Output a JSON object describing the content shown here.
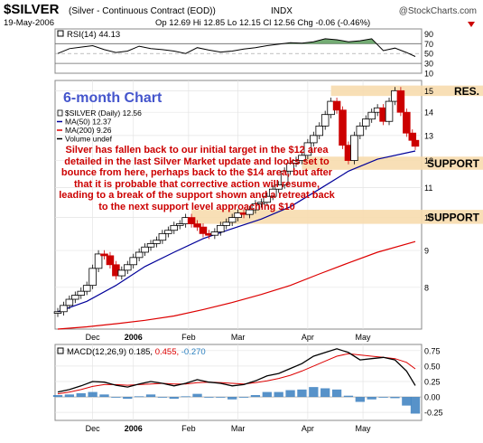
{
  "header": {
    "symbol": "$SILVER",
    "description": "(Silver - Continuous Contract (EOD))",
    "exchange": "INDX",
    "watermark": "@StockCharts.com",
    "date": "19-May-2006",
    "ohlc_text": "Op 12.69  Hi 12.85  Lo 12.15  Cl 12.56  Chg -0.06 (-0.46%)"
  },
  "chart_data": [
    {
      "type": "line",
      "panel": "rsi",
      "legend": "RSI(14) 44.13",
      "ylim": [
        10,
        100
      ],
      "ticks": [
        90,
        70,
        50,
        30,
        10
      ],
      "reference_lines": [
        70,
        30
      ],
      "fill_above": 70,
      "x": [
        0,
        4,
        8,
        12,
        16,
        20,
        24,
        28,
        32,
        36,
        40,
        44,
        48,
        52,
        56,
        60,
        64,
        68,
        72,
        76,
        80,
        84,
        88,
        92,
        96,
        100,
        104,
        108,
        112,
        116,
        120,
        123
      ],
      "values": [
        50,
        60,
        63,
        66,
        58,
        52,
        55,
        65,
        60,
        58,
        55,
        50,
        62,
        57,
        53,
        55,
        59,
        62,
        66,
        69,
        72,
        71,
        74,
        80,
        78,
        74,
        76,
        80,
        56,
        61,
        52,
        44
      ]
    },
    {
      "type": "candlestick",
      "panel": "price",
      "title": "6-month Chart",
      "legend": [
        "$SILVER (Daily) 12.56",
        "MA(50) 12.37",
        "MA(200) 9.26",
        "Volume undef"
      ],
      "ylim": [
        7,
        15.5
      ],
      "y_ticks": [
        15,
        14,
        13,
        12,
        11,
        10,
        9,
        8
      ],
      "log_scale": true,
      "x_labels": [
        "Dec",
        "2006",
        "Feb",
        "Mar",
        "Apr",
        "May"
      ],
      "x_label_positions": [
        12,
        26,
        45,
        62,
        86,
        105
      ],
      "close_x": [
        0,
        2,
        4,
        6,
        8,
        10,
        12,
        14,
        16,
        18,
        20,
        22,
        24,
        26,
        28,
        30,
        32,
        34,
        36,
        38,
        40,
        42,
        44,
        46,
        48,
        50,
        52,
        54,
        56,
        58,
        60,
        62,
        64,
        66,
        68,
        70,
        72,
        74,
        76,
        78,
        80,
        82,
        84,
        86,
        88,
        90,
        92,
        94,
        96,
        98,
        100,
        102,
        104,
        106,
        108,
        110,
        112,
        114,
        116,
        118,
        120,
        122,
        123
      ],
      "close": [
        7.4,
        7.55,
        7.7,
        7.8,
        7.9,
        8.05,
        8.5,
        8.9,
        8.85,
        8.6,
        8.3,
        8.45,
        8.6,
        8.8,
        8.95,
        9.1,
        9.2,
        9.3,
        9.5,
        9.6,
        9.75,
        9.8,
        10.0,
        9.8,
        9.7,
        9.5,
        9.45,
        9.55,
        9.75,
        9.85,
        10.0,
        10.15,
        10.1,
        10.25,
        10.45,
        10.5,
        10.7,
        10.95,
        11.1,
        11.6,
        11.9,
        12.0,
        12.2,
        12.7,
        13.0,
        13.4,
        13.9,
        14.5,
        14.1,
        12.6,
        12.0,
        13.0,
        13.4,
        13.7,
        14.0,
        14.2,
        13.6,
        14.5,
        15.0,
        14.0,
        13.1,
        12.8,
        12.56
      ],
      "ma50": [
        [
          0,
          7.4
        ],
        [
          10,
          7.65
        ],
        [
          20,
          8.05
        ],
        [
          30,
          8.55
        ],
        [
          40,
          8.95
        ],
        [
          50,
          9.35
        ],
        [
          60,
          9.65
        ],
        [
          70,
          9.95
        ],
        [
          80,
          10.35
        ],
        [
          90,
          10.95
        ],
        [
          100,
          11.6
        ],
        [
          110,
          12.05
        ],
        [
          123,
          12.37
        ]
      ],
      "ma200": [
        [
          0,
          7.0
        ],
        [
          10,
          7.05
        ],
        [
          20,
          7.12
        ],
        [
          30,
          7.2
        ],
        [
          40,
          7.3
        ],
        [
          50,
          7.45
        ],
        [
          60,
          7.62
        ],
        [
          70,
          7.82
        ],
        [
          80,
          8.05
        ],
        [
          90,
          8.35
        ],
        [
          100,
          8.65
        ],
        [
          110,
          8.95
        ],
        [
          123,
          9.26
        ]
      ],
      "bands": [
        {
          "label": "RES.",
          "from": 14.75,
          "to": 15.25,
          "start": 94
        },
        {
          "label": "SUPPORT",
          "from": 11.65,
          "to": 12.15,
          "start": 84
        },
        {
          "label": "SUPPORT",
          "from": 9.8,
          "to": 10.25,
          "start": 46
        }
      ],
      "annotation": "Silver has fallen back to our initial target in the $12 area detailed in the last Silver Market update and looks set to bounce from here, perhaps back to the $14 area, but after that it is probable that corrective action will resume, leading to a break of the support shown and a retreat  back to the next support level approaching $10"
    },
    {
      "type": "line",
      "panel": "macd",
      "legend": "MACD(12,26,9) 0.185, 0.455, -0.270",
      "legend_parts": [
        "MACD(12,26,9)",
        "0.185,",
        "0.455,",
        "-0.270"
      ],
      "ylim": [
        -0.38,
        0.85
      ],
      "y_ticks": [
        0.75,
        0.5,
        0.25,
        0.0,
        -0.25
      ],
      "x_labels": [
        "Dec",
        "2006",
        "Feb",
        "Mar",
        "Apr",
        "May"
      ],
      "x_label_positions": [
        12,
        26,
        45,
        62,
        86,
        105
      ],
      "x": [
        0,
        4,
        8,
        12,
        16,
        20,
        24,
        28,
        32,
        36,
        40,
        44,
        48,
        52,
        56,
        60,
        64,
        68,
        72,
        76,
        80,
        84,
        88,
        92,
        96,
        100,
        104,
        108,
        112,
        116,
        120,
        123
      ],
      "macd": [
        0.08,
        0.12,
        0.18,
        0.25,
        0.24,
        0.19,
        0.16,
        0.21,
        0.25,
        0.22,
        0.18,
        0.22,
        0.28,
        0.24,
        0.22,
        0.18,
        0.2,
        0.26,
        0.34,
        0.38,
        0.46,
        0.54,
        0.66,
        0.72,
        0.78,
        0.72,
        0.6,
        0.62,
        0.64,
        0.6,
        0.42,
        0.185
      ],
      "signal": [
        0.05,
        0.08,
        0.12,
        0.17,
        0.2,
        0.2,
        0.19,
        0.2,
        0.21,
        0.22,
        0.21,
        0.21,
        0.23,
        0.24,
        0.23,
        0.22,
        0.21,
        0.23,
        0.26,
        0.3,
        0.35,
        0.42,
        0.5,
        0.58,
        0.66,
        0.7,
        0.68,
        0.66,
        0.64,
        0.62,
        0.56,
        0.455
      ],
      "histogram": [
        0.03,
        0.04,
        0.06,
        0.08,
        0.04,
        -0.01,
        -0.03,
        0.01,
        0.04,
        0.0,
        -0.03,
        0.01,
        0.05,
        0.0,
        -0.01,
        -0.04,
        -0.01,
        0.03,
        0.08,
        0.08,
        0.11,
        0.12,
        0.16,
        0.14,
        0.12,
        0.02,
        -0.08,
        -0.04,
        0.0,
        -0.02,
        -0.14,
        -0.27
      ]
    }
  ]
}
